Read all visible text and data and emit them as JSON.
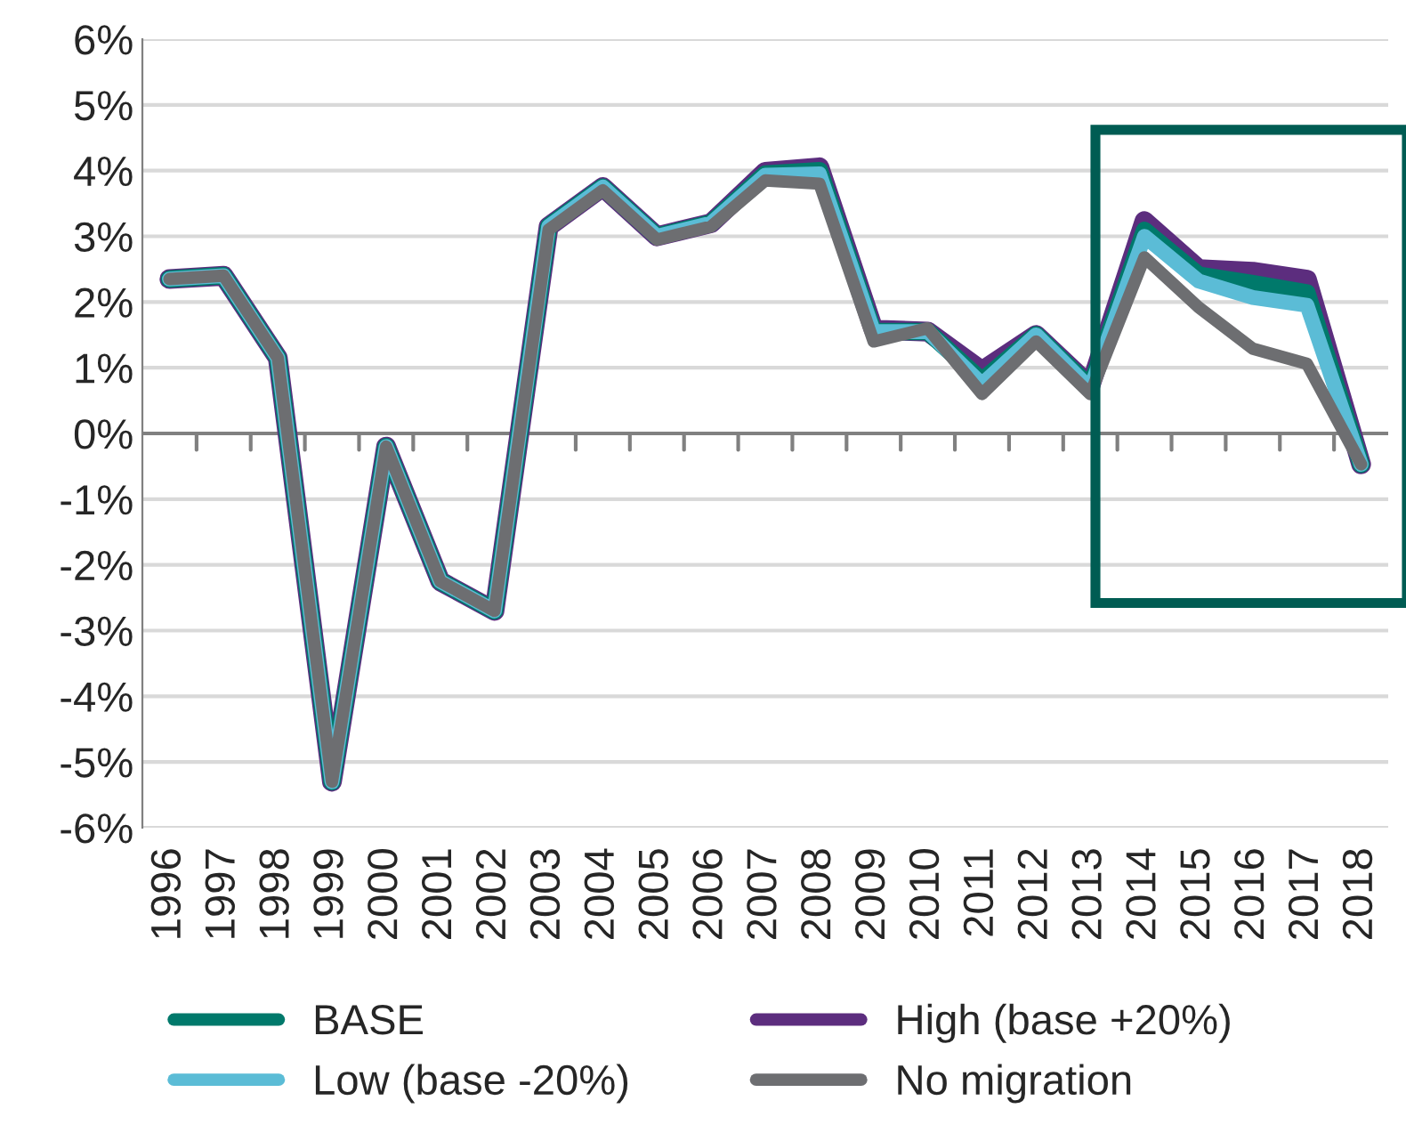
{
  "chart_data": {
    "type": "line",
    "categories": [
      "1996",
      "1997",
      "1998",
      "1999",
      "2000",
      "2001",
      "2002",
      "2003",
      "2004",
      "2005",
      "2006",
      "2007",
      "2008",
      "2009",
      "2010",
      "2011",
      "2012",
      "2013",
      "2014",
      "2015",
      "2016",
      "2017",
      "2018"
    ],
    "series": [
      {
        "name": "BASE",
        "color": "#00796b",
        "values": [
          2.35,
          2.4,
          1.15,
          -5.3,
          -0.2,
          -2.25,
          -2.7,
          3.15,
          3.75,
          3.0,
          3.2,
          3.95,
          4.0,
          1.55,
          1.55,
          0.8,
          1.5,
          0.7,
          3.09,
          2.41,
          2.28,
          2.14,
          -0.47
        ]
      },
      {
        "name": "High (base +20%)",
        "color": "#5c2d7e",
        "values": [
          2.35,
          2.4,
          1.15,
          -5.3,
          -0.2,
          -2.25,
          -2.7,
          3.15,
          3.75,
          3.0,
          3.2,
          3.98,
          4.05,
          1.58,
          1.55,
          0.95,
          1.5,
          0.72,
          3.23,
          2.5,
          2.46,
          2.34,
          -0.47
        ]
      },
      {
        "name": "Low (base -20%)",
        "color": "#5bbcd6",
        "values": [
          2.35,
          2.4,
          1.15,
          -5.3,
          -0.2,
          -2.25,
          -2.7,
          3.15,
          3.75,
          3.0,
          3.2,
          3.93,
          3.95,
          1.55,
          1.55,
          0.75,
          1.5,
          0.68,
          3.0,
          2.32,
          2.07,
          1.95,
          -0.47
        ]
      },
      {
        "name": "No migration",
        "color": "#6d6e71",
        "values": [
          2.35,
          2.4,
          1.15,
          -5.3,
          -0.2,
          -2.25,
          -2.7,
          3.1,
          3.7,
          2.95,
          3.15,
          3.85,
          3.8,
          1.4,
          1.6,
          0.6,
          1.4,
          0.6,
          2.68,
          1.92,
          1.29,
          1.06,
          -0.47
        ]
      }
    ],
    "ylim": [
      -6,
      6
    ],
    "yticks": [
      {
        "value": -6,
        "label": "-6%"
      },
      {
        "value": -5,
        "label": "-5%"
      },
      {
        "value": -4,
        "label": "-4%"
      },
      {
        "value": -3,
        "label": "-3%"
      },
      {
        "value": -2,
        "label": "-2%"
      },
      {
        "value": -1,
        "label": "-1%"
      },
      {
        "value": 0,
        "label": "0%"
      },
      {
        "value": 1,
        "label": "1%"
      },
      {
        "value": 2,
        "label": "2%"
      },
      {
        "value": 3,
        "label": "3%"
      },
      {
        "value": 4,
        "label": "4%"
      },
      {
        "value": 5,
        "label": "5%"
      },
      {
        "value": 6,
        "label": "6%"
      }
    ],
    "grid": "y",
    "legend": "bottom",
    "marker": "none",
    "line_style": "solid"
  }
}
